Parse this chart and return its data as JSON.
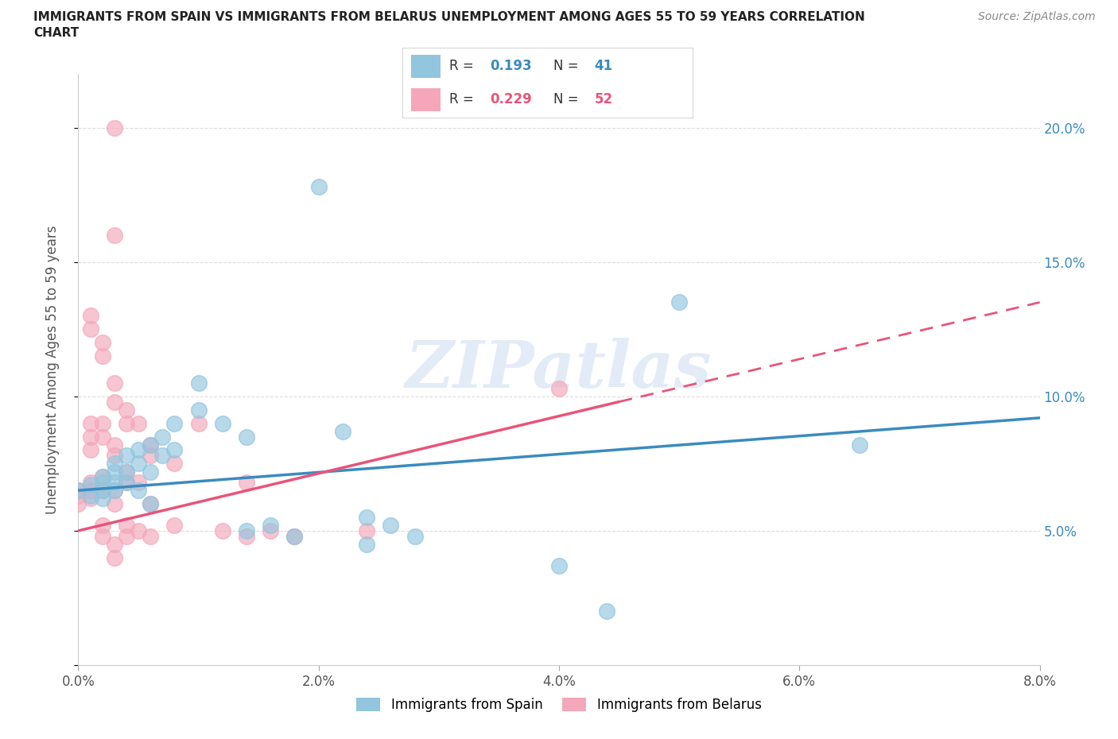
{
  "title_line1": "IMMIGRANTS FROM SPAIN VS IMMIGRANTS FROM BELARUS UNEMPLOYMENT AMONG AGES 55 TO 59 YEARS CORRELATION",
  "title_line2": "CHART",
  "source": "Source: ZipAtlas.com",
  "ylabel": "Unemployment Among Ages 55 to 59 years",
  "xlim": [
    0.0,
    0.08
  ],
  "ylim": [
    0.0,
    0.22
  ],
  "xticks": [
    0.0,
    0.02,
    0.04,
    0.06,
    0.08
  ],
  "yticks": [
    0.0,
    0.05,
    0.1,
    0.15,
    0.2
  ],
  "xtick_labels": [
    "0.0%",
    "2.0%",
    "4.0%",
    "6.0%",
    "8.0%"
  ],
  "ytick_labels_right": [
    "",
    "5.0%",
    "10.0%",
    "15.0%",
    "20.0%"
  ],
  "spain_color": "#92c5de",
  "belarus_color": "#f4a7bb",
  "spain_line_color": "#3a8bbf",
  "belarus_line_color": "#e8547a",
  "legend_r_color": "#3a8bbf",
  "legend_n_color": "#3a8bbf",
  "legend_r2_color": "#e8547a",
  "legend_n2_color": "#e8547a",
  "watermark_color": "#c8d8ee",
  "spain_R": 0.193,
  "spain_N": 41,
  "belarus_R": 0.229,
  "belarus_N": 52,
  "spain_points": [
    [
      0.0,
      0.065
    ],
    [
      0.001,
      0.067
    ],
    [
      0.001,
      0.063
    ],
    [
      0.002,
      0.07
    ],
    [
      0.002,
      0.065
    ],
    [
      0.002,
      0.068
    ],
    [
      0.002,
      0.062
    ],
    [
      0.003,
      0.075
    ],
    [
      0.003,
      0.072
    ],
    [
      0.003,
      0.068
    ],
    [
      0.003,
      0.065
    ],
    [
      0.004,
      0.078
    ],
    [
      0.004,
      0.072
    ],
    [
      0.004,
      0.068
    ],
    [
      0.005,
      0.08
    ],
    [
      0.005,
      0.075
    ],
    [
      0.005,
      0.065
    ],
    [
      0.006,
      0.082
    ],
    [
      0.006,
      0.072
    ],
    [
      0.006,
      0.06
    ],
    [
      0.007,
      0.085
    ],
    [
      0.007,
      0.078
    ],
    [
      0.008,
      0.09
    ],
    [
      0.008,
      0.08
    ],
    [
      0.01,
      0.095
    ],
    [
      0.01,
      0.105
    ],
    [
      0.012,
      0.09
    ],
    [
      0.014,
      0.085
    ],
    [
      0.014,
      0.05
    ],
    [
      0.016,
      0.052
    ],
    [
      0.018,
      0.048
    ],
    [
      0.02,
      0.178
    ],
    [
      0.022,
      0.087
    ],
    [
      0.024,
      0.055
    ],
    [
      0.024,
      0.045
    ],
    [
      0.026,
      0.052
    ],
    [
      0.028,
      0.048
    ],
    [
      0.04,
      0.037
    ],
    [
      0.044,
      0.02
    ],
    [
      0.05,
      0.135
    ],
    [
      0.065,
      0.082
    ]
  ],
  "belarus_points": [
    [
      0.0,
      0.065
    ],
    [
      0.0,
      0.063
    ],
    [
      0.0,
      0.06
    ],
    [
      0.001,
      0.13
    ],
    [
      0.001,
      0.125
    ],
    [
      0.001,
      0.09
    ],
    [
      0.001,
      0.085
    ],
    [
      0.001,
      0.08
    ],
    [
      0.001,
      0.068
    ],
    [
      0.001,
      0.065
    ],
    [
      0.001,
      0.062
    ],
    [
      0.002,
      0.12
    ],
    [
      0.002,
      0.115
    ],
    [
      0.002,
      0.09
    ],
    [
      0.002,
      0.085
    ],
    [
      0.002,
      0.07
    ],
    [
      0.002,
      0.065
    ],
    [
      0.002,
      0.052
    ],
    [
      0.002,
      0.048
    ],
    [
      0.003,
      0.2
    ],
    [
      0.003,
      0.16
    ],
    [
      0.003,
      0.105
    ],
    [
      0.003,
      0.098
    ],
    [
      0.003,
      0.082
    ],
    [
      0.003,
      0.078
    ],
    [
      0.003,
      0.065
    ],
    [
      0.003,
      0.06
    ],
    [
      0.003,
      0.045
    ],
    [
      0.003,
      0.04
    ],
    [
      0.004,
      0.095
    ],
    [
      0.004,
      0.09
    ],
    [
      0.004,
      0.072
    ],
    [
      0.004,
      0.068
    ],
    [
      0.004,
      0.052
    ],
    [
      0.004,
      0.048
    ],
    [
      0.005,
      0.09
    ],
    [
      0.005,
      0.068
    ],
    [
      0.005,
      0.05
    ],
    [
      0.006,
      0.082
    ],
    [
      0.006,
      0.078
    ],
    [
      0.006,
      0.06
    ],
    [
      0.006,
      0.048
    ],
    [
      0.008,
      0.075
    ],
    [
      0.008,
      0.052
    ],
    [
      0.01,
      0.09
    ],
    [
      0.012,
      0.05
    ],
    [
      0.014,
      0.068
    ],
    [
      0.014,
      0.048
    ],
    [
      0.016,
      0.05
    ],
    [
      0.018,
      0.048
    ],
    [
      0.024,
      0.05
    ],
    [
      0.04,
      0.103
    ]
  ]
}
